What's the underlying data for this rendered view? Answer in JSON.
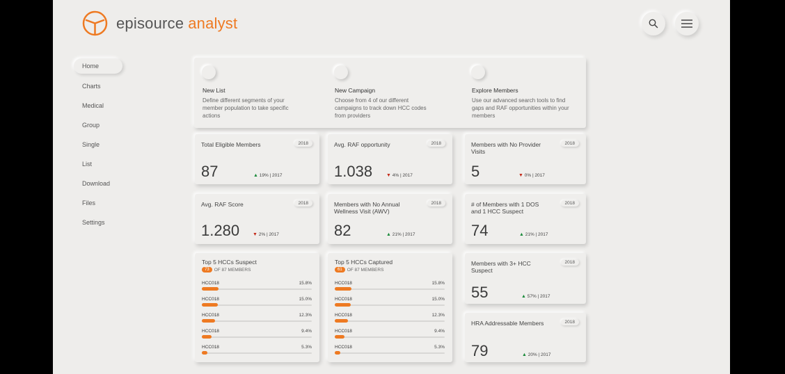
{
  "brand": {
    "name_part1": "episource",
    "name_part2": "analyst",
    "accent": "#ee7a22"
  },
  "header": {
    "search_icon": "search-icon",
    "menu_icon": "hamburger-menu-icon"
  },
  "sidebar": {
    "items": [
      {
        "label": "Home",
        "active": true
      },
      {
        "label": "Charts"
      },
      {
        "label": "Medical"
      },
      {
        "label": "Group"
      },
      {
        "label": "Single"
      },
      {
        "label": "List"
      },
      {
        "label": "Download"
      },
      {
        "label": "Files"
      },
      {
        "label": "Settings"
      }
    ]
  },
  "actions": [
    {
      "title": "New List",
      "desc": "Define different segments of your member population to take specific actions"
    },
    {
      "title": "New Campaign",
      "desc": "Choose from 4 of our different campaigns to track down HCC codes from providers"
    },
    {
      "title": "Explore Members",
      "desc": "Use our advanced search tools to find gaps and RAF opportunities within your members"
    }
  ],
  "stats": {
    "total_eligible": {
      "label": "Total Eligible Members",
      "year": "2018",
      "value": "87",
      "trend": "19% | 2017",
      "dir": "up"
    },
    "avg_raf_opp": {
      "label": "Avg. RAF opportunity",
      "year": "2018",
      "value": "1.038",
      "trend": "4% | 2017",
      "dir": "down"
    },
    "no_provider": {
      "label": "Members with No Provider Visits",
      "year": "2018",
      "value": "5",
      "trend": "0% | 2017",
      "dir": "down"
    },
    "avg_raf_score": {
      "label": "Avg. RAF Score",
      "year": "2018",
      "value": "1.280",
      "trend": "2% | 2017",
      "dir": "down"
    },
    "no_awv": {
      "label": "Members with No Annual Wellness Visit (AWV)",
      "year": "2018",
      "value": "82",
      "trend": "21% | 2017",
      "dir": "up"
    },
    "one_dos": {
      "label": "# of Members with 1 DOS and 1 HCC Suspect",
      "year": "2018",
      "value": "74",
      "trend": "21% | 2017",
      "dir": "up"
    },
    "three_hcc": {
      "label": "Members with 3+ HCC Suspect",
      "year": "2018",
      "value": "55",
      "trend": "57% | 2017",
      "dir": "up"
    },
    "hra": {
      "label": "HRA Addressable Members",
      "year": "2018",
      "value": "79",
      "trend": "20% | 2017",
      "dir": "up"
    }
  },
  "hcc_suspect": {
    "title": "Top 5 HCCs Suspect",
    "badge": "73",
    "sub": "OF 87 MEMBERS",
    "rows": [
      {
        "code": "HCC018",
        "pct": "15.8%",
        "value": 0.158
      },
      {
        "code": "HCC018",
        "pct": "15.0%",
        "value": 0.15
      },
      {
        "code": "HCC018",
        "pct": "12.3%",
        "value": 0.123
      },
      {
        "code": "HCC018",
        "pct": "9.4%",
        "value": 0.094
      },
      {
        "code": "HCC018",
        "pct": "5.3%",
        "value": 0.053
      }
    ]
  },
  "hcc_captured": {
    "title": "Top 5 HCCs Captured",
    "badge": "61",
    "sub": "OF 87 MEMBERS",
    "rows": [
      {
        "code": "HCC018",
        "pct": "15.8%",
        "value": 0.158
      },
      {
        "code": "HCC018",
        "pct": "15.0%",
        "value": 0.15
      },
      {
        "code": "HCC018",
        "pct": "12.3%",
        "value": 0.123
      },
      {
        "code": "HCC018",
        "pct": "9.4%",
        "value": 0.094
      },
      {
        "code": "HCC018",
        "pct": "5.3%",
        "value": 0.053
      }
    ]
  }
}
